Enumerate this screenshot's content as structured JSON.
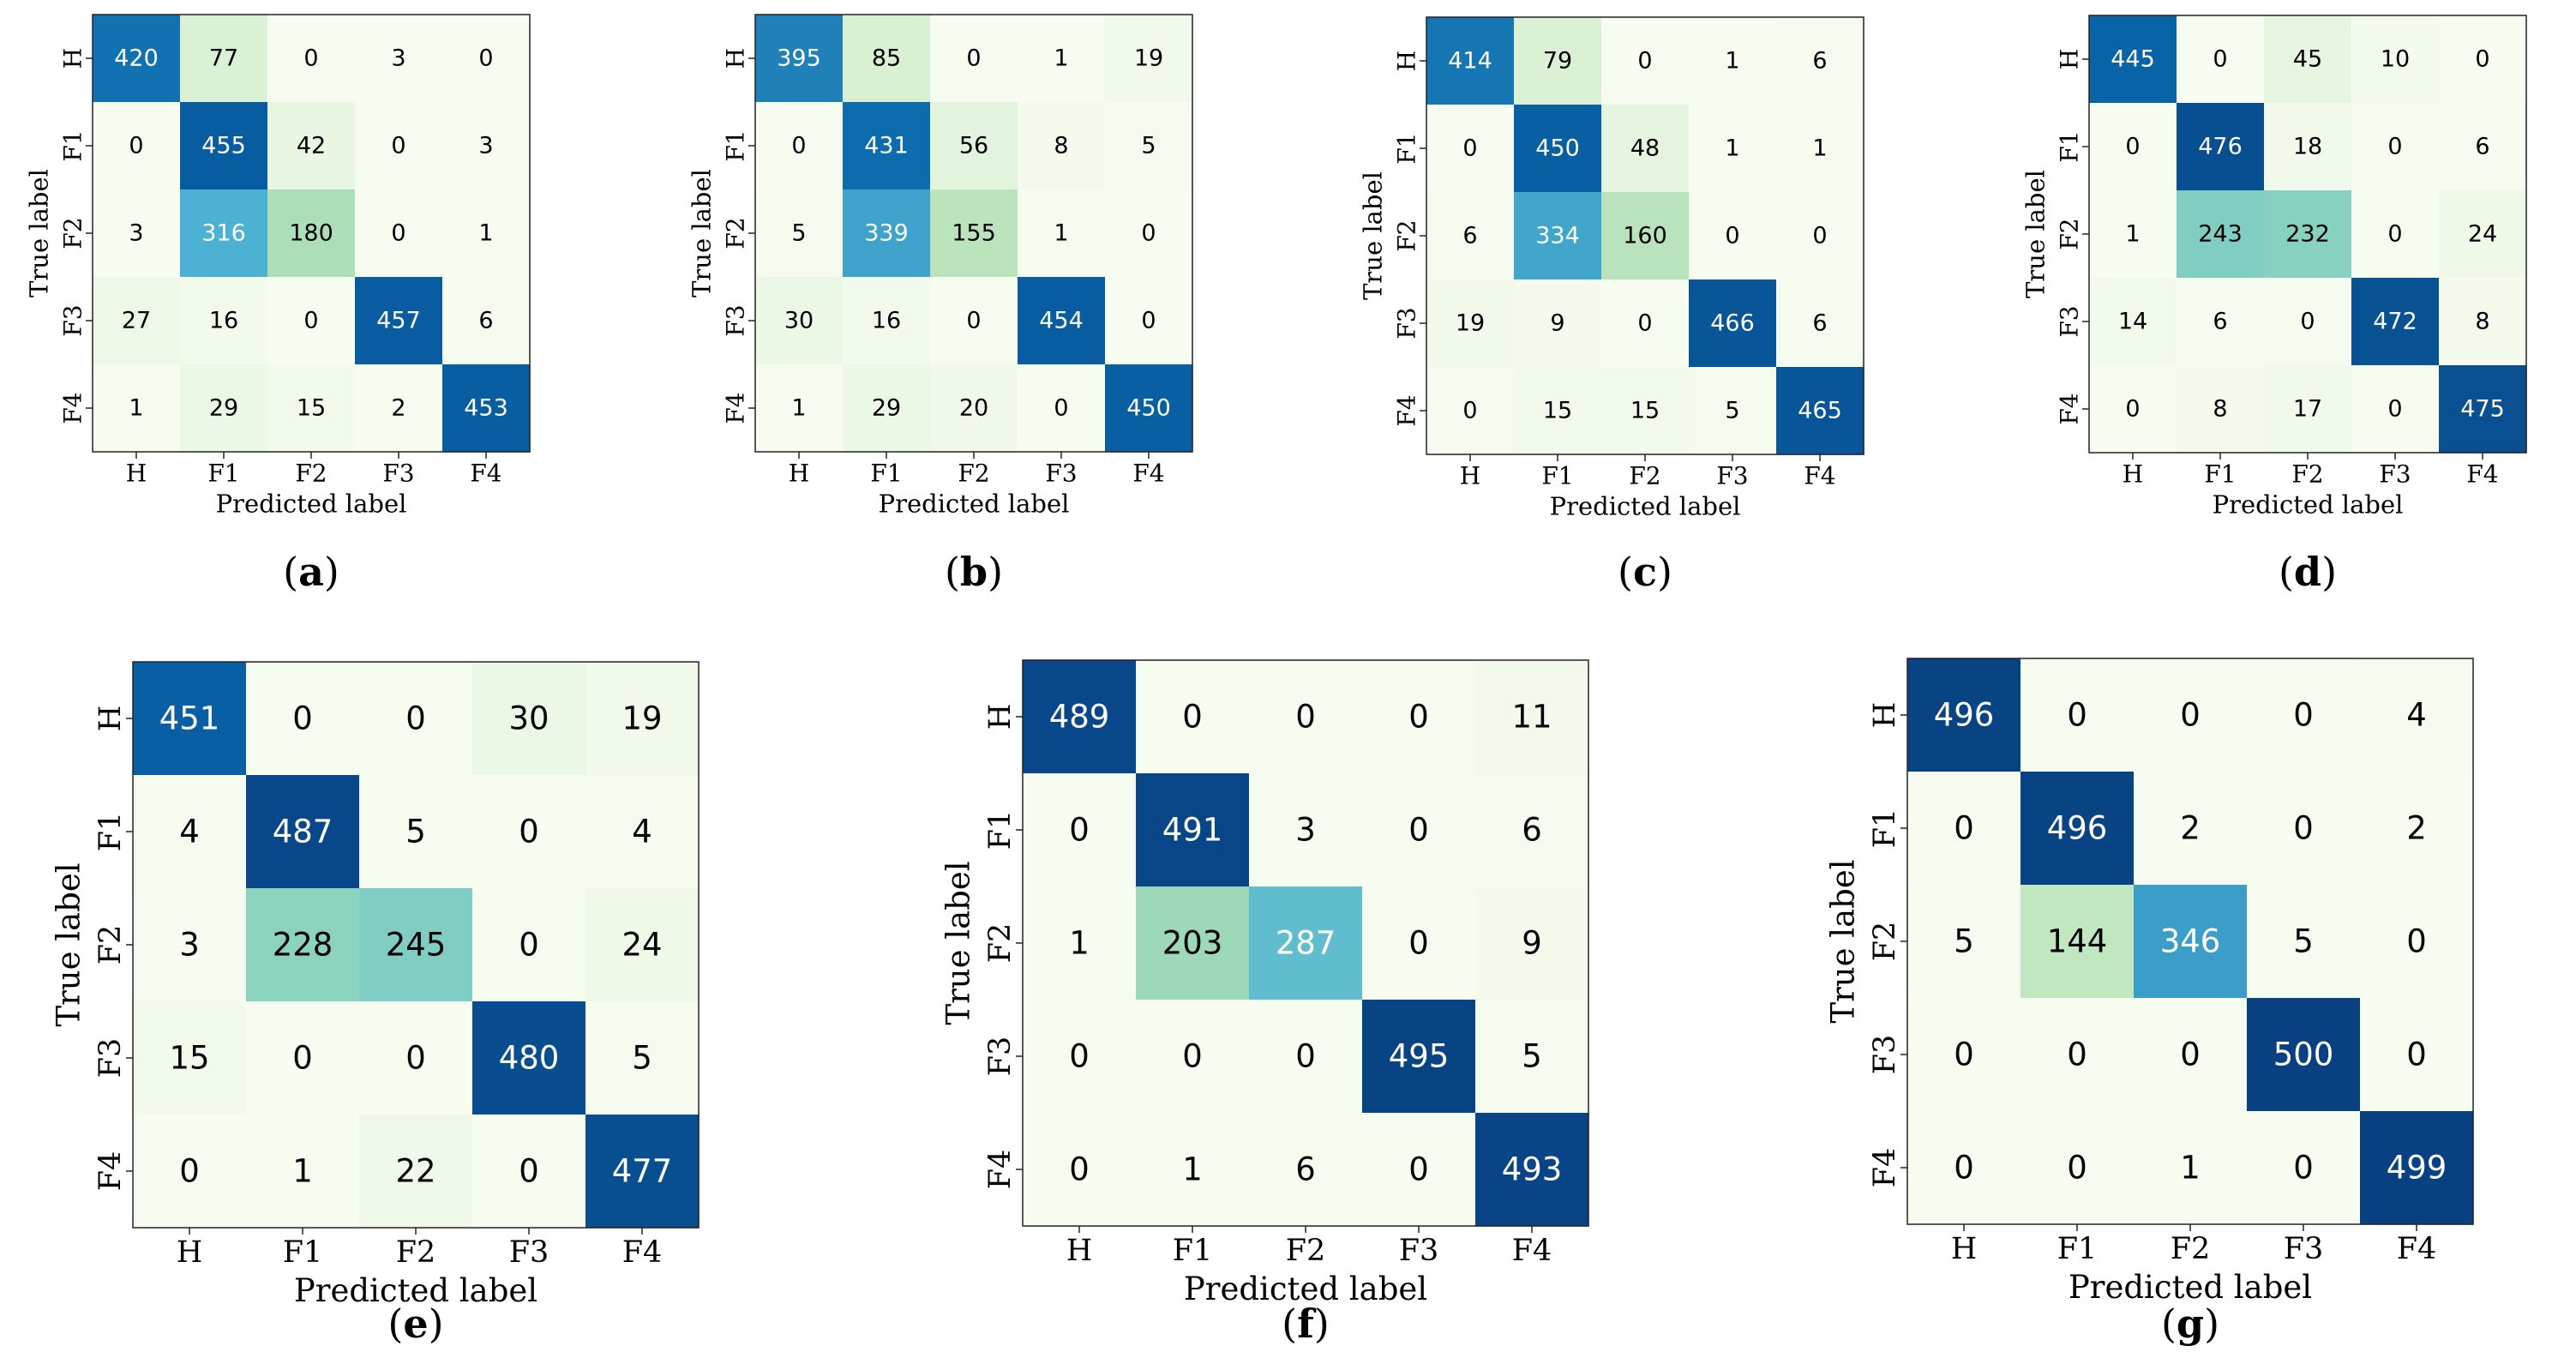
{
  "figure": {
    "colormap": [
      "#f7fcf0",
      "#e0f3db",
      "#ccebc5",
      "#a8ddb5",
      "#7bccc4",
      "#4eb3d3",
      "#2b8cbe",
      "#0868ac",
      "#084081"
    ],
    "cell_text_colors": {
      "dark_bg": "#ffffff",
      "light_bg": "#000000"
    }
  },
  "chart_data": [
    {
      "type": "heatmap",
      "panel_label": "(a)",
      "title": "",
      "xlabel": "Predicted label",
      "ylabel": "True label",
      "x_ticks": [
        "H",
        "F1",
        "F2",
        "F3",
        "F4"
      ],
      "y_ticks": [
        "H",
        "F1",
        "F2",
        "F3",
        "F4"
      ],
      "matrix": [
        [
          420,
          77,
          0,
          3,
          0
        ],
        [
          0,
          455,
          42,
          0,
          3
        ],
        [
          3,
          316,
          180,
          0,
          1
        ],
        [
          27,
          16,
          0,
          457,
          6
        ],
        [
          1,
          29,
          15,
          2,
          453
        ]
      ],
      "vrange": [
        0,
        500
      ]
    },
    {
      "type": "heatmap",
      "panel_label": "(b)",
      "title": "",
      "xlabel": "Predicted label",
      "ylabel": "True label",
      "x_ticks": [
        "H",
        "F1",
        "F2",
        "F3",
        "F4"
      ],
      "y_ticks": [
        "H",
        "F1",
        "F2",
        "F3",
        "F4"
      ],
      "matrix": [
        [
          395,
          85,
          0,
          1,
          19
        ],
        [
          0,
          431,
          56,
          8,
          5
        ],
        [
          5,
          339,
          155,
          1,
          0
        ],
        [
          30,
          16,
          0,
          454,
          0
        ],
        [
          1,
          29,
          20,
          0,
          450
        ]
      ],
      "vrange": [
        0,
        500
      ]
    },
    {
      "type": "heatmap",
      "panel_label": "(c)",
      "title": "",
      "xlabel": "Predicted label",
      "ylabel": "True label",
      "x_ticks": [
        "H",
        "F1",
        "F2",
        "F3",
        "F4"
      ],
      "y_ticks": [
        "H",
        "F1",
        "F2",
        "F3",
        "F4"
      ],
      "matrix": [
        [
          414,
          79,
          0,
          1,
          6
        ],
        [
          0,
          450,
          48,
          1,
          1
        ],
        [
          6,
          334,
          160,
          0,
          0
        ],
        [
          19,
          9,
          0,
          466,
          6
        ],
        [
          0,
          15,
          15,
          5,
          465
        ]
      ],
      "vrange": [
        0,
        500
      ]
    },
    {
      "type": "heatmap",
      "panel_label": "(d)",
      "title": "",
      "xlabel": "Predicted label",
      "ylabel": "True label",
      "x_ticks": [
        "H",
        "F1",
        "F2",
        "F3",
        "F4"
      ],
      "y_ticks": [
        "H",
        "F1",
        "F2",
        "F3",
        "F4"
      ],
      "matrix": [
        [
          445,
          0,
          45,
          10,
          0
        ],
        [
          0,
          476,
          18,
          0,
          6
        ],
        [
          1,
          243,
          232,
          0,
          24
        ],
        [
          14,
          6,
          0,
          472,
          8
        ],
        [
          0,
          8,
          17,
          0,
          475
        ]
      ],
      "vrange": [
        0,
        500
      ]
    },
    {
      "type": "heatmap",
      "panel_label": "(e)",
      "title": "",
      "xlabel": "Predicted label",
      "ylabel": "True label",
      "x_ticks": [
        "H",
        "F1",
        "F2",
        "F3",
        "F4"
      ],
      "y_ticks": [
        "H",
        "F1",
        "F2",
        "F3",
        "F4"
      ],
      "matrix": [
        [
          451,
          0,
          0,
          30,
          19
        ],
        [
          4,
          487,
          5,
          0,
          4
        ],
        [
          3,
          228,
          245,
          0,
          24
        ],
        [
          15,
          0,
          0,
          480,
          5
        ],
        [
          0,
          1,
          22,
          0,
          477
        ]
      ],
      "vrange": [
        0,
        500
      ]
    },
    {
      "type": "heatmap",
      "panel_label": "(f)",
      "title": "",
      "xlabel": "Predicted label",
      "ylabel": "True label",
      "x_ticks": [
        "H",
        "F1",
        "F2",
        "F3",
        "F4"
      ],
      "y_ticks": [
        "H",
        "F1",
        "F2",
        "F3",
        "F4"
      ],
      "matrix": [
        [
          489,
          0,
          0,
          0,
          11
        ],
        [
          0,
          491,
          3,
          0,
          6
        ],
        [
          1,
          203,
          287,
          0,
          9
        ],
        [
          0,
          0,
          0,
          495,
          5
        ],
        [
          0,
          1,
          6,
          0,
          493
        ]
      ],
      "vrange": [
        0,
        500
      ]
    },
    {
      "type": "heatmap",
      "panel_label": "(g)",
      "title": "",
      "xlabel": "Predicted label",
      "ylabel": "True label",
      "x_ticks": [
        "H",
        "F1",
        "F2",
        "F3",
        "F4"
      ],
      "y_ticks": [
        "H",
        "F1",
        "F2",
        "F3",
        "F4"
      ],
      "matrix": [
        [
          496,
          0,
          0,
          0,
          4
        ],
        [
          0,
          496,
          2,
          0,
          2
        ],
        [
          5,
          144,
          346,
          5,
          0
        ],
        [
          0,
          0,
          0,
          500,
          0
        ],
        [
          0,
          0,
          1,
          0,
          499
        ]
      ],
      "vrange": [
        0,
        500
      ]
    }
  ]
}
